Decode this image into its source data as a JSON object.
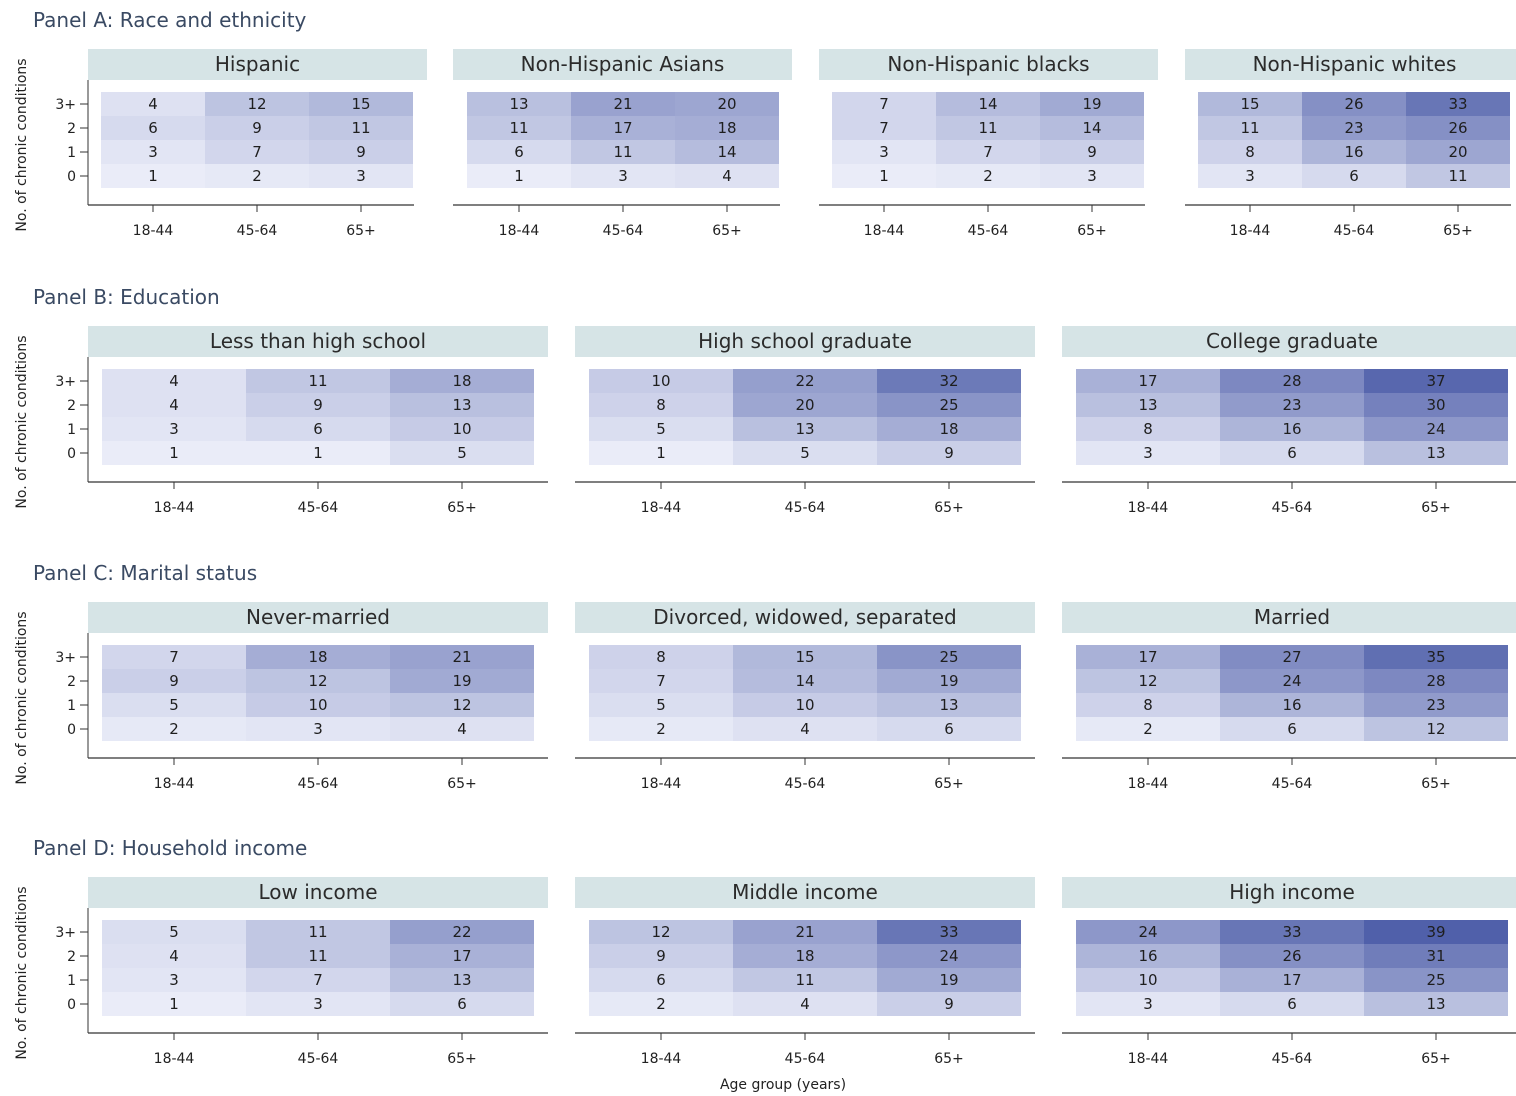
{
  "chart_data": {
    "type": "heatmap",
    "xlabel": "Age group (years)",
    "ylabel": "No. of chronic conditions",
    "x_categories": [
      "18-44",
      "45-64",
      "65+"
    ],
    "y_categories": [
      "0",
      "1",
      "2",
      "3+"
    ],
    "color_low": "#eef0fa",
    "color_high": "#4c5ca8",
    "value_range": [
      0,
      40
    ],
    "panels": [
      {
        "title": "Panel A: Race and ethnicity",
        "facets": [
          {
            "name": "Hispanic",
            "rows": {
              "3+": [
                4,
                12,
                15
              ],
              "2": [
                6,
                9,
                11
              ],
              "1": [
                3,
                7,
                9
              ],
              "0": [
                1,
                2,
                3
              ]
            }
          },
          {
            "name": "Non-Hispanic Asians",
            "rows": {
              "3+": [
                13,
                21,
                20
              ],
              "2": [
                11,
                17,
                18
              ],
              "1": [
                6,
                11,
                14
              ],
              "0": [
                1,
                3,
                4
              ]
            }
          },
          {
            "name": "Non-Hispanic blacks",
            "rows": {
              "3+": [
                7,
                14,
                19
              ],
              "2": [
                7,
                11,
                14
              ],
              "1": [
                3,
                7,
                9
              ],
              "0": [
                1,
                2,
                3
              ]
            }
          },
          {
            "name": "Non-Hispanic whites",
            "rows": {
              "3+": [
                15,
                26,
                33
              ],
              "2": [
                11,
                23,
                26
              ],
              "1": [
                8,
                16,
                20
              ],
              "0": [
                3,
                6,
                11
              ]
            }
          }
        ]
      },
      {
        "title": "Panel B: Education",
        "facets": [
          {
            "name": "Less than high school",
            "rows": {
              "3+": [
                4,
                11,
                18
              ],
              "2": [
                4,
                9,
                13
              ],
              "1": [
                3,
                6,
                10
              ],
              "0": [
                1,
                1,
                5
              ]
            }
          },
          {
            "name": "High school graduate",
            "rows": {
              "3+": [
                10,
                22,
                32
              ],
              "2": [
                8,
                20,
                25
              ],
              "1": [
                5,
                13,
                18
              ],
              "0": [
                1,
                5,
                9
              ]
            }
          },
          {
            "name": "College graduate",
            "rows": {
              "3+": [
                17,
                28,
                37
              ],
              "2": [
                13,
                23,
                30
              ],
              "1": [
                8,
                16,
                24
              ],
              "0": [
                3,
                6,
                13
              ]
            }
          }
        ]
      },
      {
        "title": "Panel C: Marital status",
        "facets": [
          {
            "name": "Never-married",
            "rows": {
              "3+": [
                7,
                18,
                21
              ],
              "2": [
                9,
                12,
                19
              ],
              "1": [
                5,
                10,
                12
              ],
              "0": [
                2,
                3,
                4
              ]
            }
          },
          {
            "name": "Divorced, widowed, separated",
            "rows": {
              "3+": [
                8,
                15,
                25
              ],
              "2": [
                7,
                14,
                19
              ],
              "1": [
                5,
                10,
                13
              ],
              "0": [
                2,
                4,
                6
              ]
            }
          },
          {
            "name": "Married",
            "rows": {
              "3+": [
                17,
                27,
                35
              ],
              "2": [
                12,
                24,
                28
              ],
              "1": [
                8,
                16,
                23
              ],
              "0": [
                2,
                6,
                12
              ]
            }
          }
        ]
      },
      {
        "title": "Panel D: Household income",
        "facets": [
          {
            "name": "Low income",
            "rows": {
              "3+": [
                5,
                11,
                22
              ],
              "2": [
                4,
                11,
                17
              ],
              "1": [
                3,
                7,
                13
              ],
              "0": [
                1,
                3,
                6
              ]
            }
          },
          {
            "name": "Middle income",
            "rows": {
              "3+": [
                12,
                21,
                33
              ],
              "2": [
                9,
                18,
                24
              ],
              "1": [
                6,
                11,
                19
              ],
              "0": [
                2,
                4,
                9
              ]
            }
          },
          {
            "name": "High income",
            "rows": {
              "3+": [
                24,
                33,
                39
              ],
              "2": [
                16,
                26,
                31
              ],
              "1": [
                10,
                17,
                25
              ],
              "0": [
                3,
                6,
                13
              ]
            }
          }
        ]
      }
    ]
  }
}
